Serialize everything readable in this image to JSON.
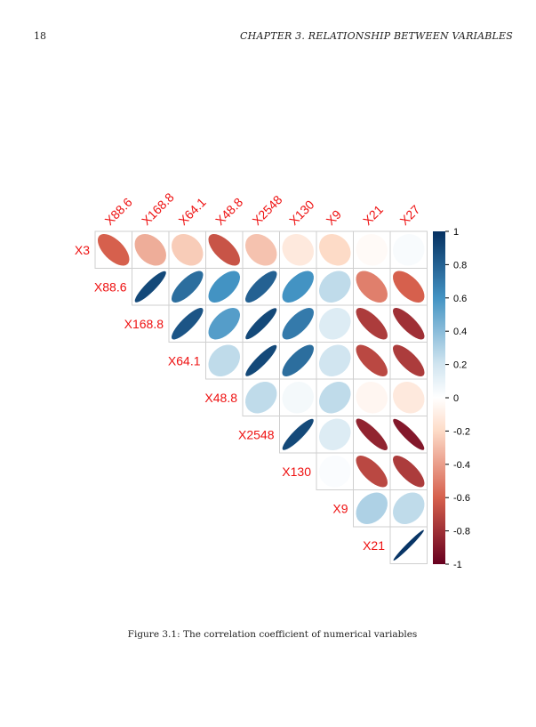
{
  "header": {
    "page_number": "18",
    "running_title": "CHAPTER 3.  RELATIONSHIP BETWEEN VARIABLES"
  },
  "figure": {
    "caption": "Figure 3.1: The correlation coefficient of numerical variables"
  },
  "chart_data": {
    "type": "heatmap",
    "style": "ellipse upper-triangle correlation matrix",
    "row_labels": [
      "X3",
      "X88.6",
      "X168.8",
      "X64.1",
      "X48.8",
      "X2548",
      "X130",
      "X9",
      "X21"
    ],
    "col_labels": [
      "X88.6",
      "X168.8",
      "X64.1",
      "X48.8",
      "X2548",
      "X130",
      "X9",
      "X21",
      "X27"
    ],
    "values": [
      [
        -0.6,
        -0.35,
        -0.25,
        -0.65,
        -0.28,
        -0.12,
        -0.2,
        -0.03,
        0.03
      ],
      [
        0.9,
        0.75,
        0.6,
        0.8,
        0.6,
        0.25,
        -0.5,
        -0.6
      ],
      [
        0.85,
        0.55,
        0.9,
        0.7,
        0.15,
        -0.75,
        -0.8
      ],
      [
        0.25,
        0.9,
        0.75,
        0.2,
        -0.7,
        -0.75
      ],
      [
        0.25,
        0.05,
        0.25,
        -0.05,
        -0.12
      ],
      [
        0.9,
        0.15,
        -0.85,
        -0.9
      ],
      [
        0.02,
        -0.7,
        -0.75
      ],
      [
        0.3,
        0.25
      ],
      [
        0.98
      ]
    ],
    "colorbar": {
      "ticks": [
        "1",
        "0.8",
        "0.6",
        "0.4",
        "0.2",
        "0",
        "-0.2",
        "-0.4",
        "-0.6",
        "-0.8",
        "-1"
      ],
      "range": [
        -1,
        1
      ],
      "colors": {
        "neg_strong": "#67001f",
        "neg_mid": "#d6604d",
        "neg_light": "#fddbc7",
        "neutral": "#ffffff",
        "pos_light": "#d1e5f0",
        "pos_mid": "#4393c3",
        "pos_strong": "#053061"
      }
    },
    "label_color": "#ee1111"
  }
}
